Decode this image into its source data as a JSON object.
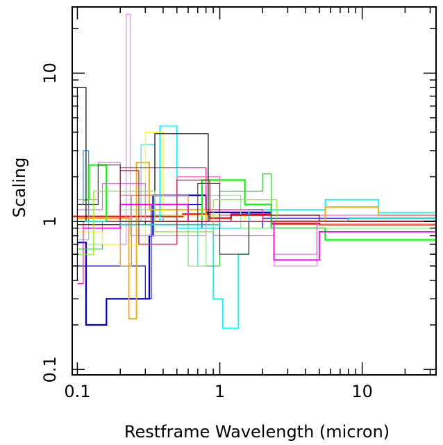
{
  "chart_data": {
    "type": "line",
    "xlabel": "Restframe Wavelength (micron)",
    "ylabel": "Scaling",
    "xscale": "log",
    "yscale": "log",
    "xlim": [
      0.092,
      33
    ],
    "ylim": [
      0.092,
      28
    ],
    "xticks": [
      {
        "value": 0.1,
        "label": "0.1"
      },
      {
        "value": 1,
        "label": "1"
      },
      {
        "value": 10,
        "label": "10"
      }
    ],
    "yticks": [
      {
        "value": 0.1,
        "label": "0.1"
      },
      {
        "value": 1,
        "label": "1"
      },
      {
        "value": 10,
        "label": "10"
      }
    ],
    "grid": false,
    "legend": "none",
    "series": [
      {
        "color": "#ff0000",
        "stroke": 2.2,
        "points": [
          [
            0.092,
            1.08
          ],
          [
            0.55,
            1.08
          ],
          [
            0.55,
            1.12
          ],
          [
            0.85,
            1.12
          ],
          [
            0.85,
            1.05
          ],
          [
            1.2,
            1.05
          ],
          [
            1.2,
            1.12
          ],
          [
            2.3,
            1.12
          ],
          [
            2.3,
            0.97
          ],
          [
            5.0,
            0.97
          ],
          [
            5.0,
            0.95
          ],
          [
            33,
            0.95
          ]
        ]
      },
      {
        "color": "#0000cd",
        "stroke": 2.2,
        "points": [
          [
            0.1,
            0.72
          ],
          [
            0.115,
            0.72
          ],
          [
            0.115,
            0.2
          ],
          [
            0.16,
            0.2
          ],
          [
            0.16,
            0.3
          ],
          [
            0.32,
            0.3
          ],
          [
            0.32,
            0.8
          ],
          [
            0.34,
            0.8
          ],
          [
            0.34,
            1.5
          ],
          [
            0.8,
            1.5
          ],
          [
            0.8,
            1.15
          ],
          [
            2.3,
            1.15
          ],
          [
            2.3,
            1.0
          ],
          [
            33,
            1.0
          ]
        ]
      },
      {
        "color": "#0000ff",
        "stroke": 1.2,
        "points": [
          [
            0.1,
            0.5
          ],
          [
            0.3,
            0.5
          ],
          [
            0.3,
            0.3
          ],
          [
            0.33,
            0.3
          ],
          [
            0.33,
            1.3
          ],
          [
            0.75,
            1.3
          ],
          [
            0.75,
            0.9
          ],
          [
            2.0,
            0.9
          ],
          [
            2.0,
            1.05
          ],
          [
            33,
            1.05
          ]
        ]
      },
      {
        "color": "#1e90ff",
        "stroke": 1.2,
        "points": [
          [
            0.1,
            1.3
          ],
          [
            0.11,
            1.3
          ],
          [
            0.11,
            3.0
          ],
          [
            0.12,
            3.0
          ],
          [
            0.12,
            1.0
          ],
          [
            0.4,
            1.0
          ],
          [
            0.4,
            1.1
          ],
          [
            2.0,
            1.1
          ],
          [
            2.0,
            1.0
          ],
          [
            33,
            1.0
          ]
        ]
      },
      {
        "color": "#00ffff",
        "stroke": 1.8,
        "points": [
          [
            0.35,
            1.0
          ],
          [
            0.38,
            1.0
          ],
          [
            0.38,
            4.4
          ],
          [
            0.5,
            4.4
          ],
          [
            0.5,
            0.9
          ],
          [
            0.9,
            0.9
          ],
          [
            0.9,
            0.3
          ],
          [
            1.05,
            0.3
          ],
          [
            1.05,
            0.19
          ],
          [
            1.35,
            0.19
          ],
          [
            1.35,
            0.6
          ],
          [
            1.6,
            0.6
          ],
          [
            1.6,
            1.2
          ],
          [
            5.5,
            1.2
          ],
          [
            5.5,
            1.4
          ],
          [
            13,
            1.4
          ],
          [
            13,
            1.15
          ],
          [
            33,
            1.15
          ]
        ]
      },
      {
        "color": "#40e0d0",
        "stroke": 1.2,
        "points": [
          [
            0.1,
            0.75
          ],
          [
            0.12,
            0.75
          ],
          [
            0.12,
            1.0
          ],
          [
            0.28,
            1.0
          ],
          [
            0.28,
            3.3
          ],
          [
            0.35,
            3.3
          ],
          [
            0.35,
            1.1
          ],
          [
            0.7,
            1.1
          ],
          [
            0.7,
            0.5
          ],
          [
            0.9,
            0.5
          ],
          [
            0.9,
            0.9
          ],
          [
            2.3,
            0.9
          ],
          [
            2.3,
            1.0
          ],
          [
            33,
            1.0
          ]
        ]
      },
      {
        "color": "#00ff00",
        "stroke": 2.2,
        "points": [
          [
            0.11,
            1.4
          ],
          [
            0.12,
            1.4
          ],
          [
            0.12,
            2.4
          ],
          [
            0.16,
            2.4
          ],
          [
            0.16,
            1.0
          ],
          [
            0.75,
            1.0
          ],
          [
            0.75,
            1.9
          ],
          [
            1.5,
            1.9
          ],
          [
            1.5,
            1.3
          ],
          [
            2.3,
            1.3
          ],
          [
            2.3,
            0.9
          ],
          [
            5.5,
            0.9
          ],
          [
            5.5,
            0.75
          ],
          [
            33,
            0.75
          ]
        ]
      },
      {
        "color": "#32cd32",
        "stroke": 1.2,
        "points": [
          [
            0.1,
            0.65
          ],
          [
            0.15,
            0.65
          ],
          [
            0.15,
            1.0
          ],
          [
            0.6,
            1.0
          ],
          [
            0.6,
            0.5
          ],
          [
            1.0,
            0.5
          ],
          [
            1.0,
            1.6
          ],
          [
            2.0,
            1.6
          ],
          [
            2.0,
            2.1
          ],
          [
            2.3,
            2.1
          ],
          [
            2.3,
            0.95
          ],
          [
            33,
            0.95
          ]
        ]
      },
      {
        "color": "#90ee90",
        "stroke": 1.2,
        "points": [
          [
            0.12,
            0.7
          ],
          [
            0.2,
            0.7
          ],
          [
            0.2,
            1.2
          ],
          [
            0.6,
            1.2
          ],
          [
            0.6,
            0.5
          ],
          [
            0.8,
            0.5
          ],
          [
            0.8,
            1.5
          ],
          [
            1.4,
            1.5
          ],
          [
            1.4,
            0.9
          ],
          [
            33,
            0.9
          ]
        ]
      },
      {
        "color": "#ffa500",
        "stroke": 1.8,
        "points": [
          [
            0.1,
            1.05
          ],
          [
            0.23,
            1.05
          ],
          [
            0.23,
            0.22
          ],
          [
            0.26,
            0.22
          ],
          [
            0.26,
            2.5
          ],
          [
            0.32,
            2.5
          ],
          [
            0.32,
            1.2
          ],
          [
            0.8,
            1.2
          ],
          [
            0.8,
            1.0
          ],
          [
            5.5,
            1.0
          ],
          [
            5.5,
            1.25
          ],
          [
            13,
            1.25
          ],
          [
            13,
            1.1
          ],
          [
            33,
            1.1
          ]
        ]
      },
      {
        "color": "#ff8c00",
        "stroke": 1.2,
        "points": [
          [
            0.1,
            0.95
          ],
          [
            0.2,
            0.95
          ],
          [
            0.2,
            0.5
          ],
          [
            0.24,
            0.5
          ],
          [
            0.24,
            1.5
          ],
          [
            0.6,
            1.5
          ],
          [
            0.6,
            1.0
          ],
          [
            33,
            1.0
          ]
        ]
      },
      {
        "color": "#ffff00",
        "stroke": 1.2,
        "points": [
          [
            0.1,
            0.85
          ],
          [
            0.15,
            0.85
          ],
          [
            0.15,
            0.7
          ],
          [
            0.3,
            0.7
          ],
          [
            0.3,
            4.0
          ],
          [
            0.4,
            4.0
          ],
          [
            0.4,
            1.1
          ],
          [
            1.5,
            1.1
          ],
          [
            1.5,
            1.0
          ],
          [
            33,
            1.0
          ]
        ]
      },
      {
        "color": "#ee82ee",
        "stroke": 1.2,
        "points": [
          [
            0.092,
            0.9
          ],
          [
            0.2,
            0.9
          ],
          [
            0.2,
            0.7
          ],
          [
            0.22,
            0.7
          ],
          [
            0.22,
            25
          ],
          [
            0.235,
            25
          ],
          [
            0.235,
            0.8
          ],
          [
            0.8,
            0.8
          ],
          [
            0.8,
            1.0
          ],
          [
            2.4,
            1.0
          ],
          [
            2.4,
            0.5
          ],
          [
            4.8,
            0.5
          ],
          [
            4.8,
            1.0
          ],
          [
            33,
            1.0
          ]
        ]
      },
      {
        "color": "#da70d6",
        "stroke": 1.2,
        "points": [
          [
            0.1,
            1.2
          ],
          [
            0.15,
            1.2
          ],
          [
            0.15,
            1.8
          ],
          [
            0.3,
            1.8
          ],
          [
            0.3,
            1.0
          ],
          [
            0.9,
            1.0
          ],
          [
            0.9,
            0.8
          ],
          [
            2.4,
            0.8
          ],
          [
            2.4,
            0.6
          ],
          [
            4.8,
            0.6
          ],
          [
            4.8,
            1.0
          ],
          [
            33,
            1.0
          ]
        ]
      },
      {
        "color": "#ff00ff",
        "stroke": 1.8,
        "points": [
          [
            0.11,
            0.9
          ],
          [
            0.2,
            0.9
          ],
          [
            0.2,
            1.3
          ],
          [
            0.6,
            1.3
          ],
          [
            0.6,
            1.0
          ],
          [
            2.4,
            1.0
          ],
          [
            2.4,
            0.55
          ],
          [
            5.0,
            0.55
          ],
          [
            5.0,
            0.85
          ],
          [
            33,
            0.85
          ]
        ]
      },
      {
        "color": "#ff1493",
        "stroke": 1.2,
        "points": [
          [
            0.1,
            0.38
          ],
          [
            0.11,
            0.38
          ],
          [
            0.11,
            1.0
          ],
          [
            0.2,
            1.0
          ],
          [
            0.2,
            2.3
          ],
          [
            0.8,
            2.3
          ],
          [
            0.8,
            1.2
          ],
          [
            2.0,
            1.2
          ],
          [
            2.0,
            1.0
          ],
          [
            33,
            1.0
          ]
        ]
      },
      {
        "color": "#ff69b4",
        "stroke": 1.2,
        "points": [
          [
            0.1,
            1.4
          ],
          [
            0.14,
            1.4
          ],
          [
            0.14,
            2.5
          ],
          [
            0.2,
            2.5
          ],
          [
            0.2,
            1.5
          ],
          [
            0.5,
            1.5
          ],
          [
            0.5,
            2.0
          ],
          [
            1.0,
            2.0
          ],
          [
            1.0,
            1.1
          ],
          [
            33,
            1.1
          ]
        ]
      },
      {
        "color": "#000000",
        "stroke": 1.2,
        "points": [
          [
            0.092,
            0.4
          ],
          [
            0.1,
            0.4
          ],
          [
            0.1,
            8.0
          ],
          [
            0.115,
            8.0
          ],
          [
            0.115,
            1.0
          ],
          [
            0.35,
            1.0
          ],
          [
            0.35,
            3.9
          ],
          [
            0.83,
            3.9
          ],
          [
            0.83,
            1.0
          ],
          [
            33,
            1.0
          ]
        ]
      },
      {
        "color": "#404040",
        "stroke": 1.2,
        "points": [
          [
            0.1,
            1.3
          ],
          [
            0.14,
            1.3
          ],
          [
            0.14,
            2.4
          ],
          [
            0.2,
            2.4
          ],
          [
            0.2,
            1.0
          ],
          [
            0.7,
            1.0
          ],
          [
            0.7,
            1.8
          ],
          [
            1.0,
            1.8
          ],
          [
            1.0,
            0.6
          ],
          [
            1.6,
            0.6
          ],
          [
            1.6,
            1.0
          ],
          [
            33,
            1.0
          ]
        ]
      },
      {
        "color": "#8b0000",
        "stroke": 1.2,
        "points": [
          [
            0.1,
            0.95
          ],
          [
            0.3,
            0.95
          ],
          [
            0.3,
            1.0
          ],
          [
            1.2,
            1.0
          ],
          [
            1.2,
            1.1
          ],
          [
            5.0,
            1.1
          ],
          [
            5.0,
            1.0
          ],
          [
            33,
            1.0
          ]
        ]
      },
      {
        "color": "#00ced1",
        "stroke": 1.8,
        "points": [
          [
            0.1,
            1.0
          ],
          [
            0.2,
            1.0
          ],
          [
            0.2,
            0.95
          ],
          [
            1.0,
            0.95
          ],
          [
            1.0,
            1.0
          ],
          [
            8.0,
            1.0
          ],
          [
            8.0,
            1.05
          ],
          [
            33,
            1.05
          ]
        ]
      },
      {
        "color": "#7cfc00",
        "stroke": 1.2,
        "points": [
          [
            0.1,
            0.6
          ],
          [
            0.13,
            0.6
          ],
          [
            0.13,
            1.6
          ],
          [
            0.35,
            1.6
          ],
          [
            0.35,
            0.85
          ],
          [
            0.9,
            0.85
          ],
          [
            0.9,
            1.4
          ],
          [
            2.5,
            1.4
          ],
          [
            2.5,
            1.0
          ],
          [
            33,
            1.0
          ]
        ]
      },
      {
        "color": "#dc143c",
        "stroke": 1.2,
        "points": [
          [
            0.16,
            1.0
          ],
          [
            0.2,
            1.0
          ],
          [
            0.2,
            2.2
          ],
          [
            0.27,
            2.2
          ],
          [
            0.27,
            0.7
          ],
          [
            0.5,
            0.7
          ],
          [
            0.5,
            1.9
          ],
          [
            0.85,
            1.9
          ],
          [
            0.85,
            1.0
          ],
          [
            33,
            1.0
          ]
        ]
      }
    ]
  }
}
